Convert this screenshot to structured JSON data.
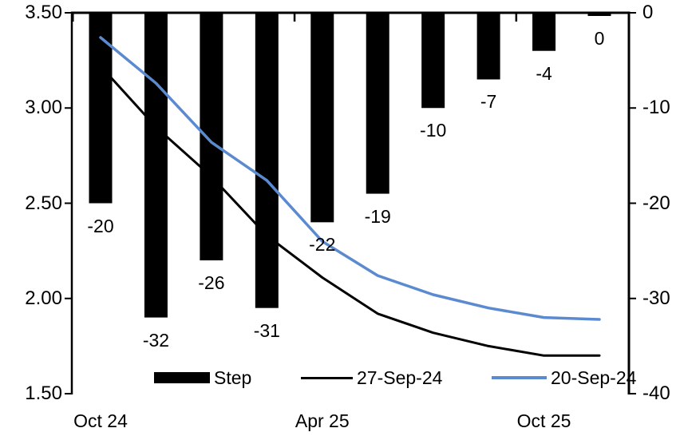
{
  "chart_data": {
    "type": "combo-bar-line",
    "description_visible_text_only": "dual-axis chart: bars on right axis (bp steps), two lines on left axis (rate path)",
    "categories_count": 10,
    "x_tick_labels": [
      {
        "label": "Oct 24",
        "category_index": 0
      },
      {
        "label": "Apr 25",
        "category_index": 4
      },
      {
        "label": "Oct 25",
        "category_index": 8
      }
    ],
    "bar_series": {
      "name": "Step",
      "color": "#000000",
      "axis": "right",
      "values": [
        -20,
        -32,
        -26,
        -31,
        -22,
        -19,
        -10,
        -7,
        -4,
        0
      ],
      "data_labels": [
        "-20",
        "-32",
        "-26",
        "-31",
        "-22",
        "-19",
        "-10",
        "-7",
        "-4",
        "0"
      ]
    },
    "line_series": [
      {
        "name": "27-Sep-24",
        "color": "#000000",
        "axis": "left",
        "values": [
          3.22,
          2.9,
          2.64,
          2.33,
          2.11,
          1.92,
          1.82,
          1.75,
          1.7,
          1.7
        ]
      },
      {
        "name": "20-Sep-24",
        "color": "#5B8AD0",
        "axis": "left",
        "values": [
          3.37,
          3.13,
          2.82,
          2.62,
          2.3,
          2.12,
          2.02,
          1.95,
          1.9,
          1.89
        ]
      }
    ],
    "left_axis": {
      "min": 1.5,
      "max": 3.5,
      "tick_labels": [
        "3.50",
        "3.00",
        "2.50",
        "2.00",
        "1.50"
      ],
      "tick_values": [
        3.5,
        3.0,
        2.5,
        2.0,
        1.5
      ]
    },
    "right_axis": {
      "min": -40,
      "max": 0,
      "tick_labels": [
        "0",
        "-10",
        "-20",
        "-30",
        "-40"
      ],
      "tick_values": [
        0,
        -10,
        -20,
        -30,
        -40
      ]
    },
    "legend": [
      "Step",
      "27-Sep-24",
      "20-Sep-24"
    ],
    "legend_position": "bottom",
    "grid": "off",
    "background": "#ffffff"
  }
}
